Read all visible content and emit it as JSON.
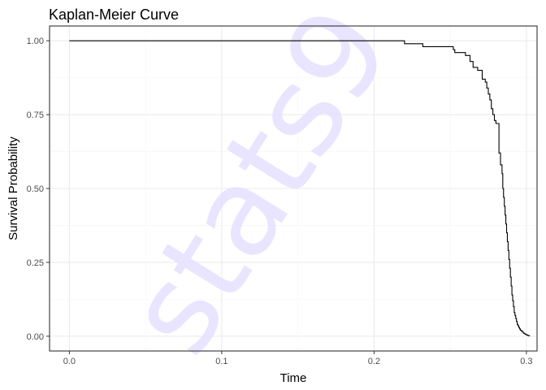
{
  "chart_data": {
    "type": "line",
    "title": "Kaplan-Meier Curve",
    "xlabel": "Time",
    "ylabel": "Survival Probability",
    "xlim": [
      -0.013,
      0.307
    ],
    "ylim": [
      -0.05,
      1.05
    ],
    "x_ticks": [
      0.0,
      0.1,
      0.2,
      0.3
    ],
    "x_tick_labels": [
      "0.0",
      "0.1",
      "0.2",
      "0.3"
    ],
    "y_ticks": [
      0.0,
      0.25,
      0.5,
      0.75,
      1.0
    ],
    "y_tick_labels": [
      "0.00",
      "0.25",
      "0.50",
      "0.75",
      "1.00"
    ],
    "grid": true,
    "series": [
      {
        "color": "#000000",
        "x": [
          0.0,
          0.22,
          0.232,
          0.252,
          0.253,
          0.26,
          0.263,
          0.265,
          0.268,
          0.271,
          0.273,
          0.274,
          0.275,
          0.276,
          0.277,
          0.278,
          0.279,
          0.28,
          0.282,
          0.283,
          0.284,
          0.2845,
          0.285,
          0.2855,
          0.286,
          0.2865,
          0.287,
          0.2875,
          0.288,
          0.2885,
          0.289,
          0.2895,
          0.29,
          0.2905,
          0.291,
          0.2915,
          0.292,
          0.2925,
          0.293,
          0.2935,
          0.294,
          0.2945,
          0.295,
          0.2955,
          0.296,
          0.297,
          0.298,
          0.299,
          0.3,
          0.301,
          0.302
        ],
        "y": [
          1.0,
          0.99,
          0.98,
          0.97,
          0.96,
          0.95,
          0.93,
          0.91,
          0.9,
          0.87,
          0.86,
          0.84,
          0.82,
          0.8,
          0.77,
          0.75,
          0.73,
          0.72,
          0.62,
          0.58,
          0.55,
          0.5,
          0.47,
          0.44,
          0.41,
          0.38,
          0.35,
          0.32,
          0.29,
          0.26,
          0.23,
          0.2,
          0.17,
          0.14,
          0.12,
          0.1,
          0.08,
          0.07,
          0.06,
          0.05,
          0.04,
          0.035,
          0.03,
          0.025,
          0.02,
          0.015,
          0.01,
          0.007,
          0.004,
          0.002,
          0.0
        ]
      }
    ]
  },
  "watermark": "stats9",
  "colors": {
    "panel_border": "#333333",
    "grid_major": "#ebebeb",
    "grid_minor": "#f5f5f5",
    "line": "#000000",
    "watermark": "#e6e0ff"
  }
}
